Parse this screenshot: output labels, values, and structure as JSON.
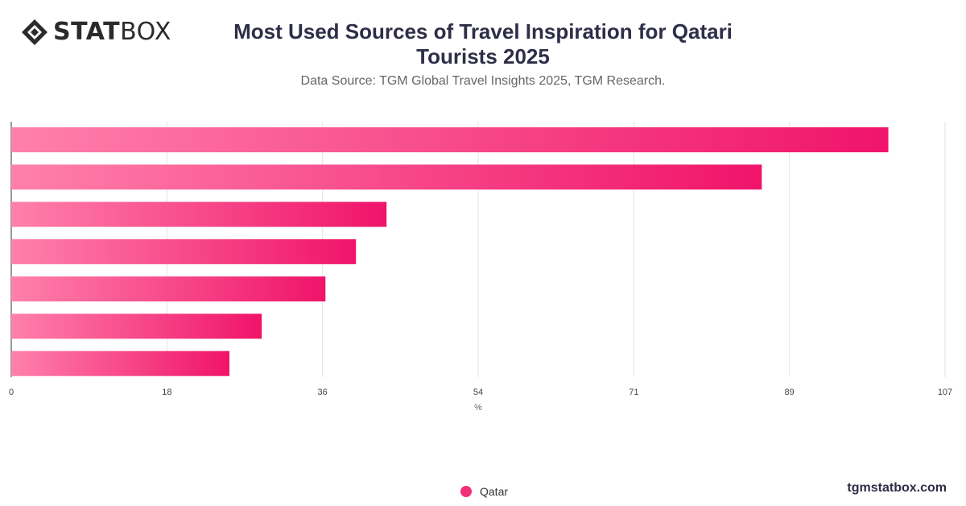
{
  "header": {
    "logo_bold": "STAT",
    "logo_light": "BOX",
    "title_line1": "Most Used Sources of Travel Inspiration for Qatari",
    "title_line2": "Tourists 2025",
    "subtitle": "Data Source: TGM Global Travel Insights 2025, TGM Research."
  },
  "footer": {
    "brand": "tgmstatbox.com"
  },
  "colors": {
    "bar_start": "#ff80ab",
    "bar_end": "#f0146a",
    "grid": "#e3e3e3",
    "legend_swatch": "#ef2f7a"
  },
  "chart_data": {
    "type": "bar",
    "orientation": "horizontal",
    "categories": [
      "",
      "",
      "",
      "",
      "",
      "",
      ""
    ],
    "series": [
      {
        "name": "Qatar",
        "values": [
          100.5,
          86,
          43,
          39.5,
          36,
          28.7,
          25
        ]
      }
    ],
    "xlabel": "%",
    "ylabel": "",
    "xlim": [
      0,
      107
    ],
    "x_ticks": [
      "0",
      "18",
      "36",
      "54",
      "71",
      "89",
      "107"
    ],
    "grid": true,
    "legend": "bottom-center"
  }
}
